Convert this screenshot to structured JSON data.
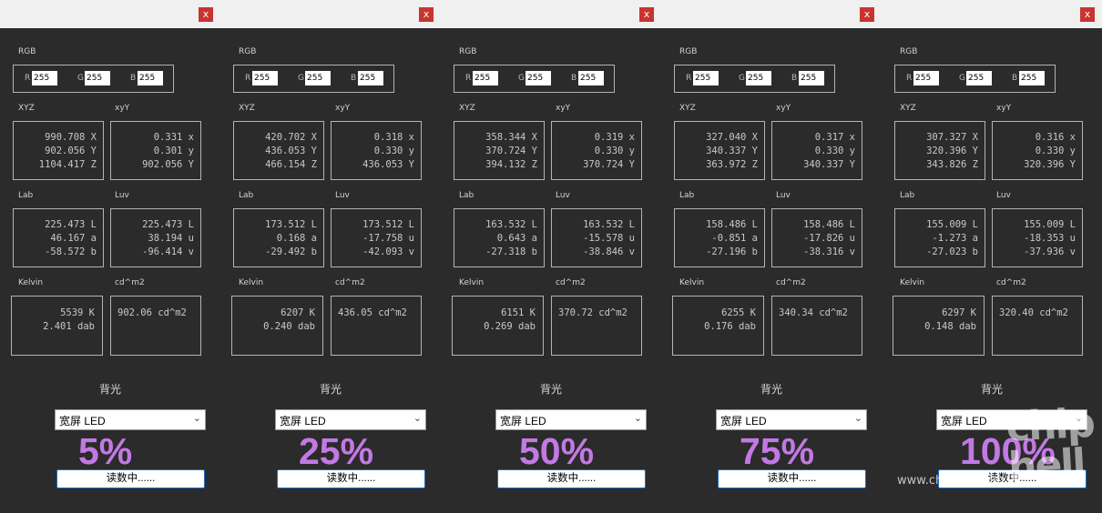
{
  "labels": {
    "rgb": "RGB",
    "xyz": "XYZ",
    "xyy": "xyY",
    "lab": "Lab",
    "luv": "Luv",
    "kelvin": "Kelvin",
    "cdm2": "cd^m2",
    "backlight": "背光",
    "r": "R",
    "g": "G",
    "b": "B",
    "close": "x",
    "chevron": "⌄"
  },
  "panels": [
    {
      "rgb": {
        "r": "255",
        "g": "255",
        "b": "255"
      },
      "xyz": "990.708 X\n902.056 Y\n1104.417 Z",
      "xyy": "0.331 x\n0.301 y\n902.056 Y",
      "lab": "225.473 L\n46.167 a\n-58.572 b",
      "luv": "225.473 L\n38.194 u\n-96.414 v",
      "kelvin": "5539 K\n2.401 dab",
      "cdm2": "902.06 cd^m2",
      "backlight_option": "宽屏 LED",
      "percent": "5%",
      "reading_button": "读数中......"
    },
    {
      "rgb": {
        "r": "255",
        "g": "255",
        "b": "255"
      },
      "xyz": "420.702 X\n436.053 Y\n466.154 Z",
      "xyy": "0.318 x\n0.330 y\n436.053 Y",
      "lab": "173.512 L\n0.168 a\n-29.492 b",
      "luv": "173.512 L\n-17.758 u\n-42.093 v",
      "kelvin": "6207 K\n0.240 dab",
      "cdm2": "436.05 cd^m2",
      "backlight_option": "宽屏 LED",
      "percent": "25%",
      "reading_button": "读数中......"
    },
    {
      "rgb": {
        "r": "255",
        "g": "255",
        "b": "255"
      },
      "xyz": "358.344 X\n370.724 Y\n394.132 Z",
      "xyy": "0.319 x\n0.330 y\n370.724 Y",
      "lab": "163.532 L\n0.643 a\n-27.318 b",
      "luv": "163.532 L\n-15.578 u\n-38.846 v",
      "kelvin": "6151 K\n0.269 dab",
      "cdm2": "370.72 cd^m2",
      "backlight_option": "宽屏 LED",
      "percent": "50%",
      "reading_button": "读数中......"
    },
    {
      "rgb": {
        "r": "255",
        "g": "255",
        "b": "255"
      },
      "xyz": "327.040 X\n340.337 Y\n363.972 Z",
      "xyy": "0.317 x\n0.330 y\n340.337 Y",
      "lab": "158.486 L\n-0.851 a\n-27.196 b",
      "luv": "158.486 L\n-17.826 u\n-38.316 v",
      "kelvin": "6255 K\n0.176 dab",
      "cdm2": "340.34 cd^m2",
      "backlight_option": "宽屏 LED",
      "percent": "75%",
      "reading_button": "读数中......"
    },
    {
      "rgb": {
        "r": "255",
        "g": "255",
        "b": "255"
      },
      "xyz": "307.327 X\n320.396 Y\n343.826 Z",
      "xyy": "0.316 x\n0.330 y\n320.396 Y",
      "lab": "155.009 L\n-1.273 a\n-27.023 b",
      "luv": "155.009 L\n-18.353 u\n-37.936 v",
      "kelvin": "6297 K\n0.148 dab",
      "cdm2": "320.40 cd^m2",
      "backlight_option": "宽屏 LED",
      "percent": "100%",
      "reading_button": "读数中......"
    }
  ],
  "watermark": {
    "logo": "chip hell",
    "url": "www.chiphell.com"
  },
  "colors": {
    "percent_purple": "#c279e4",
    "close_red": "#c8342f",
    "panel_bg": "#2b2b2b"
  }
}
